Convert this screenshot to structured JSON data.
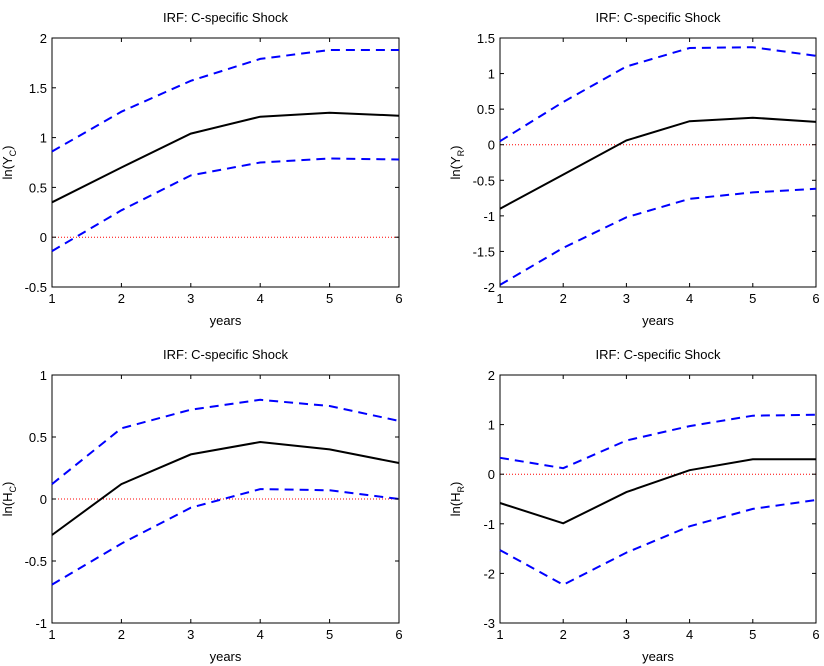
{
  "chart_data": [
    {
      "type": "line",
      "title": "IRF:  C-specific Shock",
      "xlabel": "years",
      "ylabel_main": "ln(Y",
      "ylabel_sub": "C",
      "ylabel_close": ")",
      "x": [
        1,
        2,
        3,
        4,
        5,
        6
      ],
      "xlim": [
        1,
        6
      ],
      "ylim": [
        -0.5,
        2
      ],
      "xticks": [
        "1",
        "2",
        "3",
        "4",
        "5",
        "6"
      ],
      "yticks": [
        -0.5,
        0,
        0.5,
        1,
        1.5,
        2
      ],
      "ytick_labels": [
        "-0.5",
        "0",
        "0.5",
        "1",
        "1.5",
        "2"
      ],
      "zero_line": {
        "value": 0,
        "color": "#ff0000",
        "style": "dotted"
      },
      "series": [
        {
          "role": "point_estimate",
          "color": "#000000",
          "style": "solid",
          "values": [
            0.35,
            0.7,
            1.04,
            1.21,
            1.25,
            1.22
          ]
        },
        {
          "role": "upper_band",
          "color": "#0000ff",
          "style": "dashed",
          "values": [
            0.86,
            1.26,
            1.57,
            1.79,
            1.88,
            1.88
          ]
        },
        {
          "role": "lower_band",
          "color": "#0000ff",
          "style": "dashed",
          "values": [
            -0.14,
            0.27,
            0.62,
            0.75,
            0.79,
            0.78
          ]
        }
      ]
    },
    {
      "type": "line",
      "title": "IRF:  C-specific Shock",
      "xlabel": "years",
      "ylabel_main": "ln(Y",
      "ylabel_sub": "R",
      "ylabel_close": ")",
      "x": [
        1,
        2,
        3,
        4,
        5,
        6
      ],
      "xlim": [
        1,
        6
      ],
      "ylim": [
        -2,
        1.5
      ],
      "xticks": [
        "1",
        "2",
        "3",
        "4",
        "5",
        "6"
      ],
      "yticks": [
        -2,
        -1.5,
        -1,
        -0.5,
        0,
        0.5,
        1,
        1.5
      ],
      "ytick_labels": [
        "-2",
        "-1.5",
        "-1",
        "-0.5",
        "0",
        "0.5",
        "1",
        "1.5"
      ],
      "zero_line": {
        "value": 0,
        "color": "#ff0000",
        "style": "dotted"
      },
      "series": [
        {
          "role": "point_estimate",
          "color": "#000000",
          "style": "solid",
          "values": [
            -0.9,
            -0.42,
            0.06,
            0.33,
            0.38,
            0.32
          ]
        },
        {
          "role": "upper_band",
          "color": "#0000ff",
          "style": "dashed",
          "values": [
            0.05,
            0.6,
            1.1,
            1.36,
            1.37,
            1.25
          ]
        },
        {
          "role": "lower_band",
          "color": "#0000ff",
          "style": "dashed",
          "values": [
            -1.97,
            -1.45,
            -1.02,
            -0.76,
            -0.67,
            -0.62
          ]
        }
      ]
    },
    {
      "type": "line",
      "title": "IRF:  C-specific Shock",
      "xlabel": "years",
      "ylabel_main": "ln(H",
      "ylabel_sub": "C",
      "ylabel_close": ")",
      "x": [
        1,
        2,
        3,
        4,
        5,
        6
      ],
      "xlim": [
        1,
        6
      ],
      "ylim": [
        -1,
        1
      ],
      "xticks": [
        "1",
        "2",
        "3",
        "4",
        "5",
        "6"
      ],
      "yticks": [
        -1,
        -0.5,
        0,
        0.5,
        1
      ],
      "ytick_labels": [
        "-1",
        "-0.5",
        "0",
        "0.5",
        "1"
      ],
      "zero_line": {
        "value": 0,
        "color": "#ff0000",
        "style": "dotted"
      },
      "series": [
        {
          "role": "point_estimate",
          "color": "#000000",
          "style": "solid",
          "values": [
            -0.29,
            0.12,
            0.36,
            0.46,
            0.4,
            0.29
          ]
        },
        {
          "role": "upper_band",
          "color": "#0000ff",
          "style": "dashed",
          "values": [
            0.12,
            0.57,
            0.72,
            0.8,
            0.75,
            0.63
          ]
        },
        {
          "role": "lower_band",
          "color": "#0000ff",
          "style": "dashed",
          "values": [
            -0.69,
            -0.36,
            -0.07,
            0.08,
            0.07,
            0.0
          ]
        }
      ]
    },
    {
      "type": "line",
      "title": "IRF:  C-specific Shock",
      "xlabel": "years",
      "ylabel_main": "ln(H",
      "ylabel_sub": "R",
      "ylabel_close": ")",
      "x": [
        1,
        2,
        3,
        4,
        5,
        6
      ],
      "xlim": [
        1,
        6
      ],
      "ylim": [
        -3,
        2
      ],
      "xticks": [
        "1",
        "2",
        "3",
        "4",
        "5",
        "6"
      ],
      "yticks": [
        -3,
        -2,
        -1,
        0,
        1,
        2
      ],
      "ytick_labels": [
        "-3",
        "-2",
        "-1",
        "0",
        "1",
        "2"
      ],
      "zero_line": {
        "value": 0,
        "color": "#ff0000",
        "style": "dotted"
      },
      "series": [
        {
          "role": "point_estimate",
          "color": "#000000",
          "style": "solid",
          "values": [
            -0.58,
            -0.99,
            -0.36,
            0.08,
            0.3,
            0.3
          ]
        },
        {
          "role": "upper_band",
          "color": "#0000ff",
          "style": "dashed",
          "values": [
            0.33,
            0.12,
            0.68,
            0.97,
            1.18,
            1.2
          ]
        },
        {
          "role": "lower_band",
          "color": "#0000ff",
          "style": "dashed",
          "values": [
            -1.53,
            -2.23,
            -1.58,
            -1.05,
            -0.7,
            -0.52
          ]
        }
      ]
    }
  ]
}
